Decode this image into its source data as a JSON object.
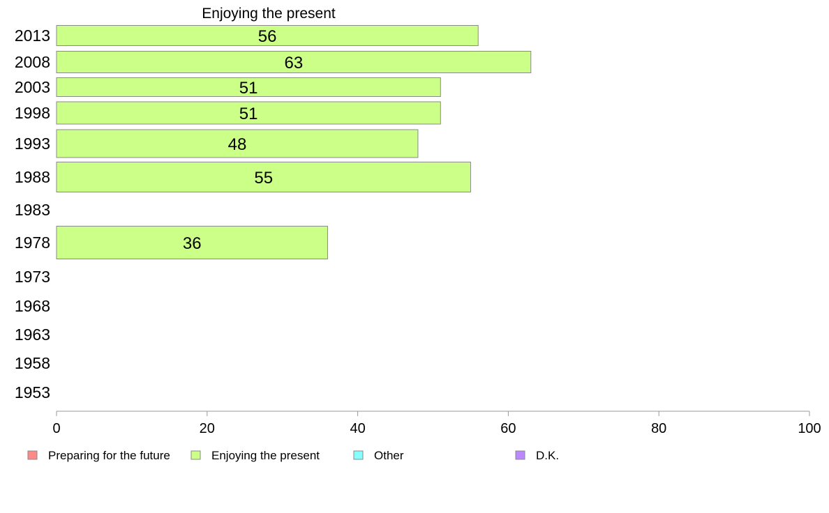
{
  "chart_data": {
    "type": "bar",
    "orientation": "horizontal",
    "title": "Enjoying the present",
    "categories": [
      "2013",
      "2008",
      "2003",
      "1998",
      "1993",
      "1988",
      "1983",
      "1978",
      "1973",
      "1968",
      "1963",
      "1958",
      "1953"
    ],
    "series": [
      {
        "name": "Enjoying the present",
        "color": "#ccff88",
        "values": [
          56,
          63,
          51,
          51,
          48,
          55,
          null,
          36,
          null,
          null,
          null,
          null,
          null
        ],
        "labels": [
          "56",
          "63",
          "51",
          "51",
          "48",
          "55",
          "",
          "36",
          "",
          "",
          "",
          "",
          ""
        ]
      }
    ],
    "xlim": [
      0,
      100
    ],
    "xticks": [
      0,
      20,
      40,
      60,
      80,
      100
    ],
    "xtick_labels": [
      "0",
      "20",
      "40",
      "60",
      "80",
      "100"
    ],
    "grid": false,
    "legend_position": "bottom",
    "legend": [
      {
        "label": "Preparing for the future",
        "color": "#ff8888"
      },
      {
        "label": "Enjoying the present",
        "color": "#ccff88"
      },
      {
        "label": "Other",
        "color": "#88ffff"
      },
      {
        "label": "D.K.",
        "color": "#bb88ff"
      }
    ]
  }
}
